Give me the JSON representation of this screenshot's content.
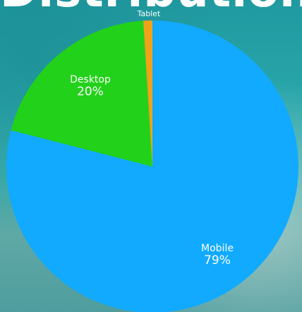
{
  "title": "Distribution",
  "chart_data": {
    "type": "pie",
    "slices": [
      {
        "label": "Mobile",
        "value": 79,
        "display": "79%",
        "color": "#11aaff"
      },
      {
        "label": "Desktop",
        "value": 20,
        "display": "20%",
        "color": "#22d11a"
      },
      {
        "label": "Tablet",
        "value": 1,
        "display": "",
        "color": "#f0a21a"
      }
    ]
  }
}
